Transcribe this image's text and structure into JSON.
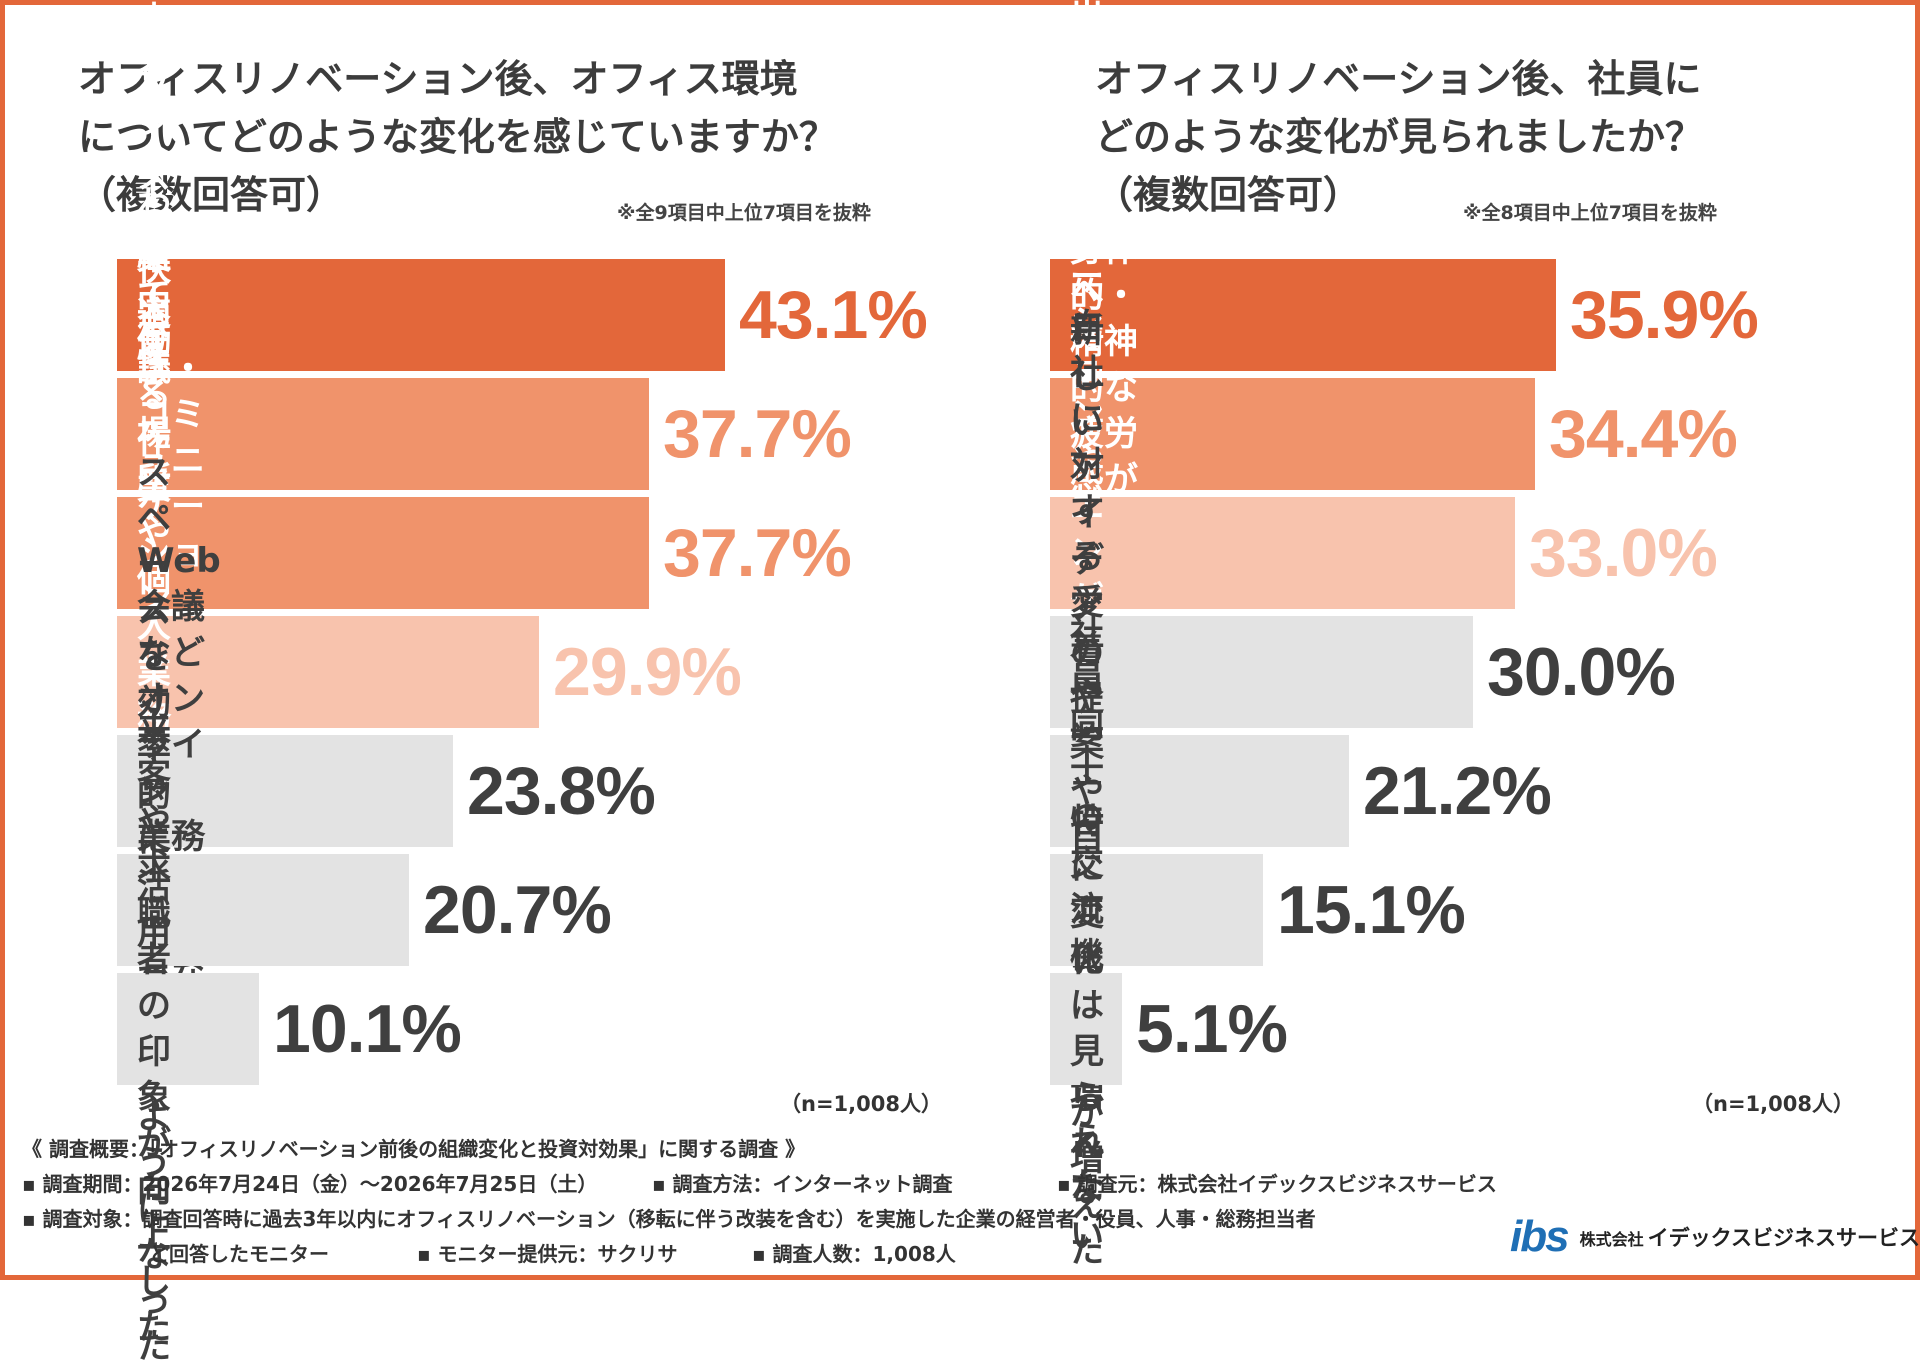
{
  "colors": {
    "border": "#e3673a",
    "tier1": "#e3673a",
    "tier2": "#f0936b",
    "tier3": "#f8c3ad",
    "gray": "#e3e3e3",
    "text_dark": "#3f3f3f"
  },
  "left": {
    "title_lines": [
      "オフィスリノベーション後、オフィス環境",
      "についてどのような変化を感じていますか？",
      "（複数回答可）"
    ],
    "note": "※全9項目中上位7項目を抜粋",
    "sample": "（n=1,008人）"
  },
  "right": {
    "title_lines": [
      "オフィスリノベーション後、社員に",
      "どのような変化が見られましたか？",
      "（複数回答可）"
    ],
    "note": "※全8項目中上位7項目を抜粋",
    "sample": "（n=1,008人）"
  },
  "chart_data": [
    {
      "type": "bar",
      "orientation": "horizontal",
      "title": "オフィスリノベーション後、オフィス環境についてどのような変化を感じていますか？（複数回答可）",
      "categories": [
        "オフィスの快適性が向上した",
        "業務内容に合わせて働く場所\nを選べるようになった",
        "会議・コミュニケーション\nがしやすくなった",
        "集中する作業や個人業務\nがしやすくなった",
        "Web会議などオンライン\n業務がしやすくなった",
        "スペースを効率的に\n活用できるようになった",
        "来客や求職者の\n印象が向上した"
      ],
      "values": [
        43.1,
        37.7,
        37.7,
        29.9,
        23.8,
        20.7,
        10.1
      ],
      "value_labels": [
        "43.1%",
        "37.7%",
        "37.7%",
        "29.9%",
        "23.8%",
        "20.7%",
        "10.1%"
      ],
      "tiers": [
        1,
        2,
        2,
        3,
        0,
        0,
        0
      ],
      "unit": "%"
    },
    {
      "type": "bar",
      "orientation": "horizontal",
      "title": "オフィスリノベーション後、社員にどのような変化が見られましたか？（複数回答可）",
      "categories": [
        "オフィスに出社することへの\nポジティブな声が増えた",
        "身体的・精神的な\n疲労感が軽減された",
        "働くモチベーションや\nエンゲージメントが向上した",
        "自社に対する愛着や\n誇りが高まった",
        "新しいアイデアの提案や\n自発的な行動が増えた",
        "社員同士の交流機会が増えた",
        "特に変化は見られない"
      ],
      "values": [
        35.9,
        34.4,
        33.0,
        30.0,
        21.2,
        15.1,
        5.1
      ],
      "value_labels": [
        "35.9%",
        "34.4%",
        "33.0%",
        "30.0%",
        "21.2%",
        "15.1%",
        "5.1%"
      ],
      "tiers": [
        1,
        2,
        3,
        0,
        0,
        0,
        0
      ],
      "unit": "%"
    }
  ],
  "footer": {
    "heading": "《 調査概要：「オフィスリノベーション前後の組織変化と投資対効果」に関する調査 》",
    "period": "▪ 調査期間：2026年7月24日（金）〜2026年7月25日（土）",
    "method": "▪ 調査方法：インターネット調査",
    "source": "▪ 調査元：株式会社イデックスビジネスサービス",
    "target_1": "▪ 調査対象：調査回答時に過去3年以内にオフィスリノベーション（移転に伴う改装を含む）を実施した企業の経営者・役員、人事・総務担当者",
    "target_2": "と回答したモニター",
    "provider": "▪ モニター提供元：サクリサ",
    "count": "▪ 調査人数：1,008人"
  },
  "logo": {
    "mark": "ibs",
    "prefix": "株式会社",
    "name": "イデックスビジネスサービス"
  }
}
